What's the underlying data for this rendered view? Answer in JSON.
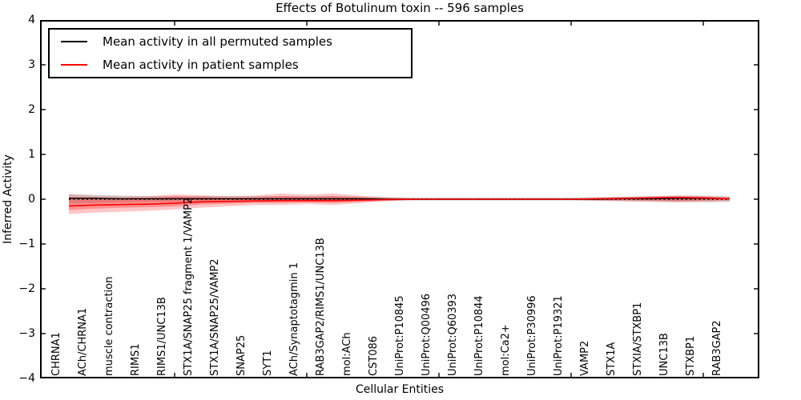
{
  "chart_data": {
    "type": "line",
    "title": "Effects of Botulinum toxin -- 596 samples",
    "xlabel": "Cellular Entities",
    "ylabel": "Inferred Activity",
    "ylim": [
      -4,
      4
    ],
    "yticks": [
      "4",
      "3",
      "2",
      "1",
      "0",
      "−1",
      "−2",
      "−3",
      "−4"
    ],
    "grid": false,
    "legend_position": "upper left",
    "categories": [
      "CHRNA1",
      "ACh/CHRNA1",
      "muscle contraction",
      "RIMS1",
      "RIMS1/UNC13B",
      "STX1A/SNAP25 fragment 1/VAMP2",
      "STX1A/SNAP25/VAMP2",
      "SNAP25",
      "SYT1",
      "ACh/Synaptotagmin 1",
      "RAB3GAP2/RIMS1/UNC13B",
      "mol:ACh",
      "CST086",
      "UniProt:P10845",
      "UniProt:Q00496",
      "UniProt:Q60393",
      "UniProt:P10844",
      "mol:Ca2+",
      "UniProt:P30996",
      "UniProt:P19321",
      "VAMP2",
      "STX1A",
      "STXIA/STXBP1",
      "UNC13B",
      "STXBP1",
      "RAB3GAP2"
    ],
    "series": [
      {
        "name": "Mean activity in all permuted samples",
        "color": "#000000",
        "style": "solid",
        "values": [
          0.02,
          0.02,
          0.01,
          0.01,
          0.01,
          0.01,
          0.01,
          0.01,
          0.01,
          0.01,
          0.01,
          0.01,
          0.0,
          0.0,
          0.0,
          0.0,
          0.0,
          0.0,
          0.0,
          0.0,
          0.0,
          0.01,
          0.01,
          0.02,
          0.02,
          0.01
        ]
      },
      {
        "name": "Mean activity in patient samples",
        "color": "#ff0000",
        "style": "solid",
        "values": [
          -0.15,
          -0.13,
          -0.12,
          -0.11,
          -0.09,
          -0.06,
          -0.05,
          -0.04,
          -0.03,
          -0.03,
          -0.03,
          -0.02,
          -0.01,
          0.0,
          0.0,
          0.0,
          0.0,
          0.0,
          0.0,
          0.0,
          0.01,
          0.02,
          0.03,
          0.04,
          0.03,
          0.01
        ]
      }
    ],
    "reference_line": {
      "y": 0,
      "color": "#000000",
      "style": "dotted"
    },
    "bands": [
      {
        "name": "permuted-samples-range",
        "fill": "rgba(0,0,0,0.16)",
        "lower": [
          -0.1,
          -0.08,
          -0.07,
          -0.06,
          -0.06,
          -0.06,
          -0.06,
          -0.06,
          -0.06,
          -0.06,
          -0.06,
          -0.05,
          -0.04,
          -0.03,
          -0.03,
          -0.03,
          -0.03,
          -0.03,
          -0.03,
          -0.03,
          -0.04,
          -0.05,
          -0.06,
          -0.07,
          -0.07,
          -0.06
        ],
        "upper": [
          0.12,
          0.1,
          0.08,
          0.07,
          0.07,
          0.07,
          0.07,
          0.07,
          0.07,
          0.07,
          0.07,
          0.06,
          0.05,
          0.04,
          0.04,
          0.04,
          0.04,
          0.04,
          0.04,
          0.04,
          0.05,
          0.06,
          0.07,
          0.08,
          0.08,
          0.07
        ]
      },
      {
        "name": "patient-samples-range-outer",
        "fill": "rgba(255,0,0,0.22)",
        "lower": [
          -0.33,
          -0.3,
          -0.28,
          -0.26,
          -0.23,
          -0.19,
          -0.16,
          -0.13,
          -0.13,
          -0.11,
          -0.13,
          -0.09,
          -0.04,
          -0.02,
          -0.02,
          -0.02,
          -0.02,
          -0.02,
          -0.02,
          -0.02,
          -0.03,
          -0.04,
          -0.05,
          -0.06,
          -0.05,
          -0.04
        ],
        "upper": [
          0.1,
          0.07,
          0.06,
          0.07,
          0.11,
          0.09,
          0.07,
          0.08,
          0.13,
          0.1,
          0.13,
          0.08,
          0.04,
          0.02,
          0.02,
          0.02,
          0.02,
          0.02,
          0.02,
          0.02,
          0.03,
          0.05,
          0.06,
          0.08,
          0.07,
          0.05
        ]
      },
      {
        "name": "patient-samples-range-inner",
        "fill": "rgba(255,0,0,0.28)",
        "lower": [
          -0.24,
          -0.21,
          -0.19,
          -0.18,
          -0.16,
          -0.12,
          -0.1,
          -0.08,
          -0.08,
          -0.07,
          -0.08,
          -0.06,
          -0.02,
          -0.01,
          -0.01,
          -0.01,
          -0.01,
          -0.01,
          -0.01,
          -0.01,
          -0.02,
          -0.02,
          -0.03,
          -0.04,
          -0.03,
          -0.02
        ],
        "upper": [
          0.04,
          0.03,
          0.02,
          0.03,
          0.06,
          0.05,
          0.03,
          0.04,
          0.07,
          0.05,
          0.07,
          0.04,
          0.02,
          0.01,
          0.01,
          0.01,
          0.01,
          0.01,
          0.01,
          0.01,
          0.02,
          0.03,
          0.04,
          0.05,
          0.04,
          0.03
        ]
      }
    ],
    "top_tick_indices": [
      4,
      9,
      14,
      19,
      24
    ],
    "axis_color": "#000000"
  }
}
